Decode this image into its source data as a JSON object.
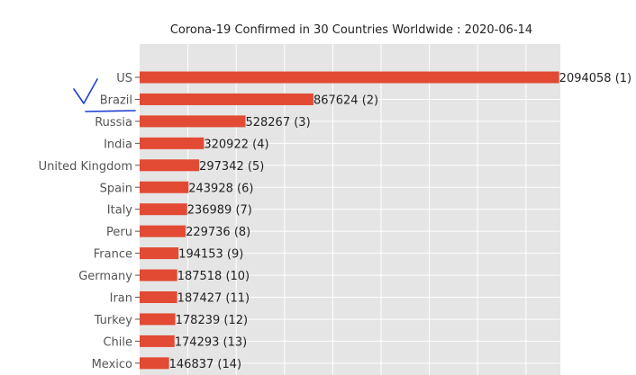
{
  "chart_data": {
    "type": "bar",
    "orientation": "horizontal",
    "title": "Corona-19 Confirmed in 30 Countries Worldwide : 2020-06-14",
    "xlabel": "",
    "ylabel": "",
    "grid": true,
    "bar_color": "#e24a33",
    "plot_background": "#e5e5e5",
    "xlim": [
      0,
      2100000
    ],
    "categories": [
      "US",
      "Brazil",
      "Russia",
      "India",
      "United Kingdom",
      "Spain",
      "Italy",
      "Peru",
      "France",
      "Germany",
      "Iran",
      "Turkey",
      "Chile",
      "Mexico"
    ],
    "values": [
      2094058,
      867624,
      528267,
      320922,
      297342,
      243928,
      236989,
      229736,
      194153,
      187518,
      187427,
      178239,
      174293,
      146837
    ],
    "ranks": [
      1,
      2,
      3,
      4,
      5,
      6,
      7,
      8,
      9,
      10,
      11,
      12,
      13,
      14
    ],
    "bar_labels": [
      "2094058 (1)",
      "867624 (2)",
      "528267 (3)",
      "320922 (4)",
      "297342 (5)",
      "243928 (6)",
      "236989 (7)",
      "229736 (8)",
      "194153 (9)",
      "187518 (10)",
      "187427 (11)",
      "178239 (12)",
      "174293 (13)",
      "146837 (14)"
    ],
    "annotation": {
      "type": "handwritten checkmark with underline",
      "target_category": "Brazil",
      "color": "#1f3fd0"
    }
  }
}
